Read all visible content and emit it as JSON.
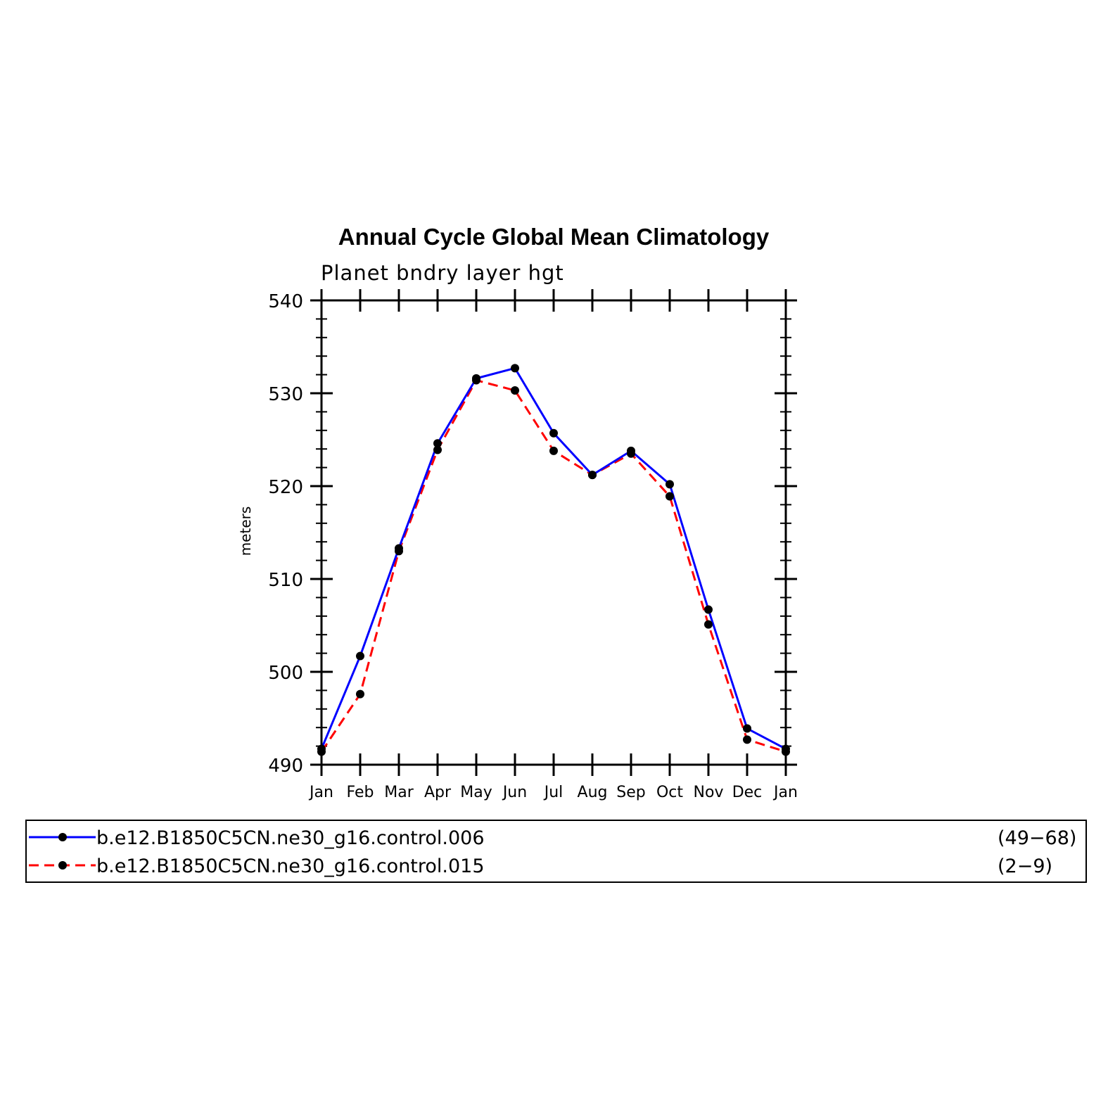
{
  "chart_data": {
    "type": "line",
    "title": "Annual Cycle Global Mean Climatology",
    "subtitle": "Planet bndry layer hgt",
    "ylabel": "meters",
    "xlabel": "",
    "categories": [
      "Jan",
      "Feb",
      "Mar",
      "Apr",
      "May",
      "Jun",
      "Jul",
      "Aug",
      "Sep",
      "Oct",
      "Nov",
      "Dec",
      "Jan"
    ],
    "ylim": [
      490,
      540
    ],
    "yticks": [
      490,
      500,
      510,
      520,
      530,
      540
    ],
    "ytick_labels": [
      "490",
      "500",
      "510",
      "520",
      "530",
      "540"
    ],
    "grid": false,
    "series": [
      {
        "name": "b.e12.B1850C5CN.ne30_g16.control.006",
        "years": "(49−68)",
        "color": "#0000ff",
        "dash": "solid",
        "values": [
          491.7,
          501.7,
          513.3,
          524.6,
          531.6,
          532.7,
          525.7,
          521.2,
          523.8,
          520.2,
          506.7,
          493.9,
          491.7
        ]
      },
      {
        "name": "b.e12.B1850C5CN.ne30_g16.control.015",
        "years": "(2−9)",
        "color": "#ff0000",
        "dash": "dashed",
        "values": [
          491.4,
          497.6,
          513.0,
          523.9,
          531.4,
          530.3,
          523.8,
          521.2,
          523.5,
          518.9,
          505.1,
          492.7,
          491.4
        ]
      }
    ]
  }
}
